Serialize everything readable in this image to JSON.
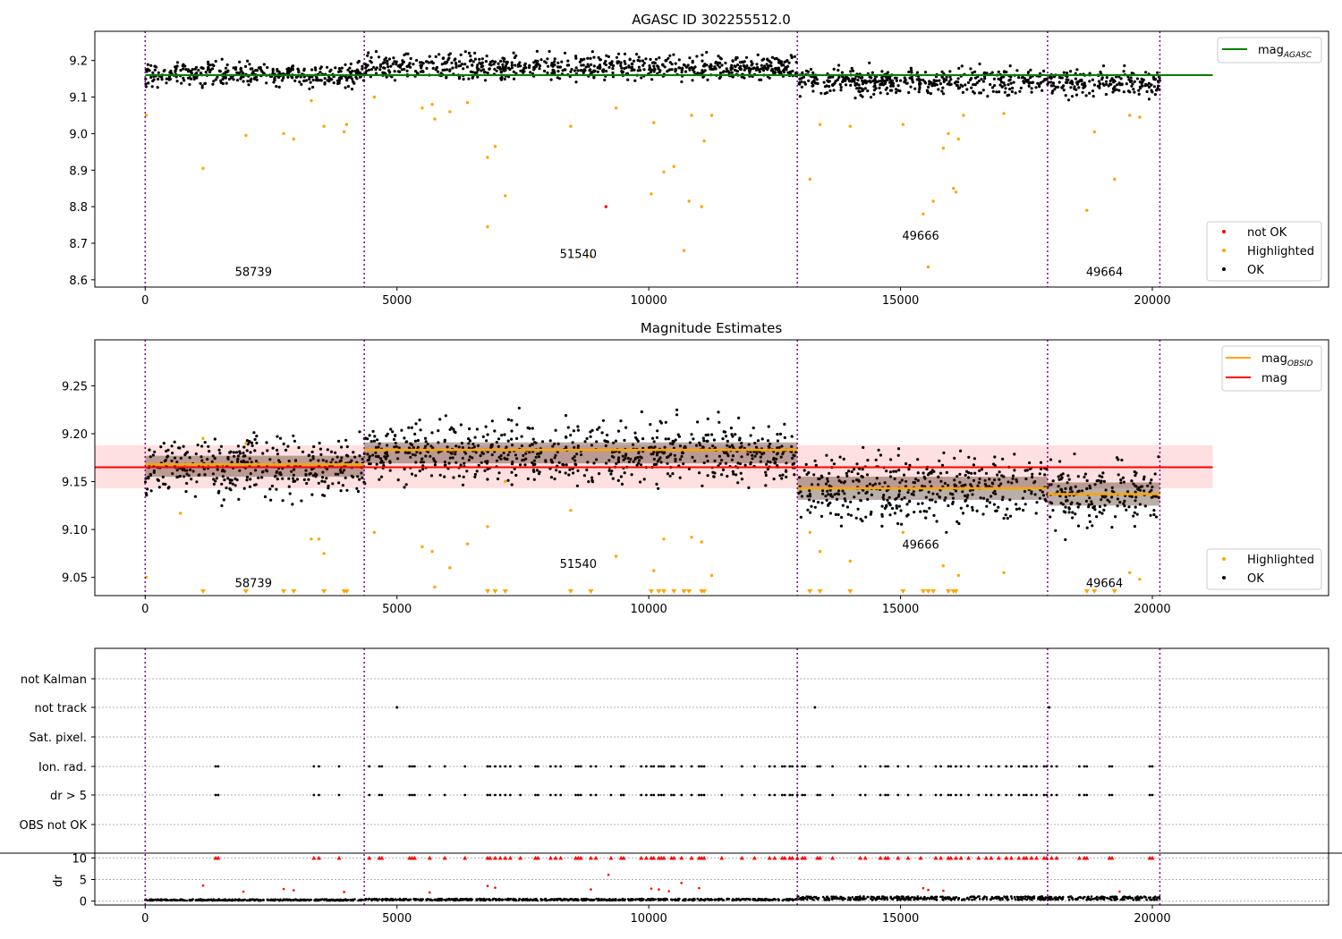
{
  "chart_data": [
    {
      "type": "scatter",
      "title": "AGASC ID 302255512.0",
      "xlabel": "",
      "ylabel": "",
      "xlim": [
        -1000,
        23500
      ],
      "ylim": [
        8.58,
        9.28
      ],
      "xticks": [
        0,
        5000,
        10000,
        15000,
        20000
      ],
      "yticks": [
        8.6,
        8.7,
        8.8,
        8.9,
        9.0,
        9.1,
        9.2
      ],
      "ytick_labels": [
        "8.6",
        "8.7",
        "8.8",
        "8.9",
        "9.0",
        "9.1",
        "9.2"
      ],
      "xtick_labels": [
        "0",
        "5000",
        "10000",
        "15000",
        "20000"
      ],
      "obsid_boundaries": [
        0,
        4350,
        12950,
        17920,
        20150
      ],
      "obsid_labels": [
        {
          "text": "58739",
          "x": 2150,
          "y": 8.61
        },
        {
          "text": "51540",
          "x": 8600,
          "y": 8.66
        },
        {
          "text": "49666",
          "x": 15400,
          "y": 8.71
        },
        {
          "text": "49664",
          "x": 19050,
          "y": 8.61
        }
      ],
      "mag_agasc": 9.16,
      "mag_agasc_xrange": [
        0,
        21200
      ],
      "segments": [
        {
          "x0": 0,
          "x1": 4350,
          "center": 9.162,
          "spread": 0.05
        },
        {
          "x0": 4350,
          "x1": 12950,
          "center": 9.182,
          "spread": 0.055
        },
        {
          "x0": 12950,
          "x1": 17920,
          "center": 9.143,
          "spread": 0.055
        },
        {
          "x0": 17920,
          "x1": 20150,
          "center": 9.137,
          "spread": 0.055
        }
      ],
      "highlighted_outliers": [
        [
          20,
          9.05
        ],
        [
          1150,
          8.905
        ],
        [
          2000,
          8.995
        ],
        [
          2750,
          9.0
        ],
        [
          2950,
          8.985
        ],
        [
          3300,
          9.09
        ],
        [
          3550,
          9.02
        ],
        [
          3950,
          9.005
        ],
        [
          4000,
          9.025
        ],
        [
          4550,
          9.1
        ],
        [
          5500,
          9.07
        ],
        [
          5700,
          9.08
        ],
        [
          5750,
          9.04
        ],
        [
          6050,
          9.06
        ],
        [
          6400,
          9.085
        ],
        [
          6800,
          8.935
        ],
        [
          6800,
          8.745
        ],
        [
          6950,
          8.965
        ],
        [
          7150,
          8.83
        ],
        [
          8450,
          9.02
        ],
        [
          8850,
          8.665
        ],
        [
          9350,
          9.07
        ],
        [
          10050,
          8.835
        ],
        [
          10100,
          9.03
        ],
        [
          10300,
          8.895
        ],
        [
          10500,
          8.91
        ],
        [
          10700,
          8.68
        ],
        [
          10800,
          8.815
        ],
        [
          11050,
          8.8
        ],
        [
          11100,
          8.98
        ],
        [
          10850,
          9.05
        ],
        [
          11250,
          9.05
        ],
        [
          13200,
          8.875
        ],
        [
          13400,
          9.025
        ],
        [
          14000,
          9.02
        ],
        [
          15050,
          9.025
        ],
        [
          15450,
          8.78
        ],
        [
          15550,
          8.635
        ],
        [
          15650,
          8.815
        ],
        [
          15850,
          8.96
        ],
        [
          15950,
          9.0
        ],
        [
          16050,
          8.85
        ],
        [
          16100,
          8.84
        ],
        [
          16150,
          8.985
        ],
        [
          16250,
          9.05
        ],
        [
          17050,
          9.055
        ],
        [
          18700,
          8.79
        ],
        [
          18850,
          9.005
        ],
        [
          19250,
          8.875
        ],
        [
          19550,
          9.05
        ],
        [
          19750,
          9.045
        ]
      ],
      "not_ok_points": [
        [
          9150,
          8.8
        ]
      ],
      "legend_top": [
        {
          "label": "mag",
          "subscript": "AGASC",
          "color": "#008000"
        }
      ],
      "legend_bottom": [
        {
          "label": "not OK",
          "color": "#ff0000"
        },
        {
          "label": "Highlighted",
          "color": "#ffa500"
        },
        {
          "label": "OK",
          "color": "#000000"
        }
      ]
    },
    {
      "type": "scatter",
      "title": "Magnitude Estimates",
      "xlabel": "",
      "ylabel": "",
      "xlim": [
        -1000,
        23500
      ],
      "ylim": [
        9.031,
        9.298
      ],
      "xticks": [
        0,
        5000,
        10000,
        15000,
        20000
      ],
      "yticks": [
        9.05,
        9.1,
        9.15,
        9.2,
        9.25
      ],
      "ytick_labels": [
        "9.05",
        "9.10",
        "9.15",
        "9.20",
        "9.25"
      ],
      "xtick_labels": [
        "0",
        "5000",
        "10000",
        "15000",
        "20000"
      ],
      "obsid_boundaries": [
        0,
        4350,
        12950,
        17920,
        20150
      ],
      "obsid_labels": [
        {
          "text": "58739",
          "x": 2150,
          "y": 9.04
        },
        {
          "text": "51540",
          "x": 8600,
          "y": 9.06
        },
        {
          "text": "49666",
          "x": 15400,
          "y": 9.08
        },
        {
          "text": "49664",
          "x": 19050,
          "y": 9.04
        }
      ],
      "mag": 9.165,
      "mag_band": [
        9.143,
        9.188
      ],
      "mag_xrange": [
        -1000,
        21200
      ],
      "mag_obsid": [
        {
          "x0": 0,
          "x1": 4350,
          "value": 9.168
        },
        {
          "x0": 4350,
          "x1": 12950,
          "value": 9.183
        },
        {
          "x0": 12950,
          "x1": 17920,
          "value": 9.143
        },
        {
          "x0": 17920,
          "x1": 20150,
          "value": 9.137
        }
      ],
      "segments": [
        {
          "x0": 0,
          "x1": 4350,
          "center": 9.166,
          "spread": 0.05
        },
        {
          "x0": 4350,
          "x1": 12950,
          "center": 9.18,
          "spread": 0.05
        },
        {
          "x0": 12950,
          "x1": 17920,
          "center": 9.143,
          "spread": 0.055
        },
        {
          "x0": 17920,
          "x1": 20150,
          "center": 9.137,
          "spread": 0.055
        }
      ],
      "highlighted_outliers": [
        [
          20,
          9.05
        ],
        [
          700,
          9.117
        ],
        [
          1150,
          9.195
        ],
        [
          2000,
          9.19
        ],
        [
          3300,
          9.09
        ],
        [
          3450,
          9.09
        ],
        [
          3550,
          9.075
        ],
        [
          4550,
          9.097
        ],
        [
          5500,
          9.082
        ],
        [
          5700,
          9.077
        ],
        [
          5750,
          9.04
        ],
        [
          6050,
          9.06
        ],
        [
          6400,
          9.085
        ],
        [
          6800,
          9.103
        ],
        [
          7150,
          9.15
        ],
        [
          8450,
          9.12
        ],
        [
          9350,
          9.072
        ],
        [
          10100,
          9.057
        ],
        [
          10300,
          9.09
        ],
        [
          10850,
          9.092
        ],
        [
          11050,
          9.087
        ],
        [
          11250,
          9.052
        ],
        [
          13200,
          9.097
        ],
        [
          13400,
          9.077
        ],
        [
          14000,
          9.067
        ],
        [
          15050,
          9.097
        ],
        [
          15850,
          9.062
        ],
        [
          16150,
          9.052
        ],
        [
          17050,
          9.055
        ],
        [
          19550,
          9.055
        ],
        [
          19750,
          9.048
        ]
      ],
      "below_range_markers": [
        1150,
        2000,
        2750,
        2950,
        3550,
        3950,
        4000,
        6800,
        6950,
        7150,
        8450,
        8850,
        10050,
        10200,
        10300,
        10500,
        10700,
        10800,
        11050,
        11100,
        13200,
        13400,
        14000,
        15050,
        15450,
        15550,
        15650,
        15950,
        16050,
        16100,
        18700,
        18850,
        19250
      ],
      "legend_top": [
        {
          "label": "mag",
          "subscript": "OBSID",
          "color": "#ffa500"
        },
        {
          "label": "mag",
          "subscript": "",
          "color": "#ff0000"
        }
      ],
      "legend_bottom": [
        {
          "label": "Highlighted",
          "color": "#ffa500"
        },
        {
          "label": "OK",
          "color": "#000000"
        }
      ]
    },
    {
      "type": "scatter",
      "title": "",
      "xlabel": "",
      "ylabel": "",
      "xlim": [
        -1000,
        23500
      ],
      "xticks": [
        0,
        5000,
        10000,
        15000,
        20000
      ],
      "xtick_labels": [
        "0",
        "5000",
        "10000",
        "15000",
        "20000"
      ],
      "obsid_boundaries": [
        0,
        4350,
        12950,
        17920,
        20150
      ],
      "flag_categories": [
        "not Kalman",
        "not track",
        "Sat. pixel.",
        "Ion. rad.",
        "dr > 5",
        "OBS not OK"
      ],
      "not_track_points": [
        5000,
        13300,
        17950
      ],
      "ion_rad_points": [
        1400,
        1450,
        3350,
        3450,
        3850,
        4450,
        4650,
        4700,
        5250,
        5300,
        5350,
        5650,
        5950,
        6350,
        6800,
        6850,
        6950,
        7050,
        7150,
        7250,
        7450,
        7750,
        7800,
        8050,
        8150,
        8250,
        8550,
        8600,
        8650,
        8850,
        8950,
        9250,
        9450,
        9500,
        9850,
        9950,
        10050,
        10100,
        10200,
        10250,
        10300,
        10450,
        10500,
        10650,
        10850,
        11000,
        11050,
        11100,
        11450,
        11850,
        12100,
        12400,
        12500,
        12650,
        12700,
        12800,
        12850,
        12950,
        13050,
        13100,
        13350,
        13400,
        13650,
        14200,
        14300,
        14600,
        14700,
        14750,
        14950,
        15150,
        15400,
        15700,
        15800,
        15950,
        16000,
        16100,
        16200,
        16350,
        16550,
        16700,
        16800,
        16950,
        17100,
        17200,
        17350,
        17450,
        17500,
        17600,
        17700,
        17850,
        17900,
        18000,
        18100,
        18550,
        18650,
        18700,
        19150,
        19200,
        19950,
        20000
      ],
      "dr_ylim": [
        -0.5,
        10.5
      ],
      "dr_yticks": [
        0,
        5,
        10
      ],
      "dr_ylabel": "dr",
      "dr_outliers": [
        [
          1150,
          3.6
        ],
        [
          1950,
          2.2
        ],
        [
          2750,
          2.8
        ],
        [
          2950,
          2.5
        ],
        [
          3950,
          2.1
        ],
        [
          5650,
          2.0
        ],
        [
          6800,
          3.5
        ],
        [
          6950,
          3.1
        ],
        [
          8850,
          2.7
        ],
        [
          9200,
          6.1
        ],
        [
          10050,
          2.9
        ],
        [
          10200,
          2.7
        ],
        [
          10400,
          2.3
        ],
        [
          10650,
          4.2
        ],
        [
          11000,
          3.0
        ],
        [
          15450,
          3.0
        ],
        [
          15550,
          2.6
        ],
        [
          15850,
          2.4
        ],
        [
          19350,
          2.2
        ]
      ],
      "dr_segment_levels": [
        {
          "x0": 0,
          "x1": 4350,
          "level": 0.35
        },
        {
          "x0": 4350,
          "x1": 12950,
          "level": 0.45
        },
        {
          "x0": 12950,
          "x1": 17920,
          "level": 0.9
        },
        {
          "x0": 17920,
          "x1": 20150,
          "level": 0.9
        }
      ]
    }
  ]
}
